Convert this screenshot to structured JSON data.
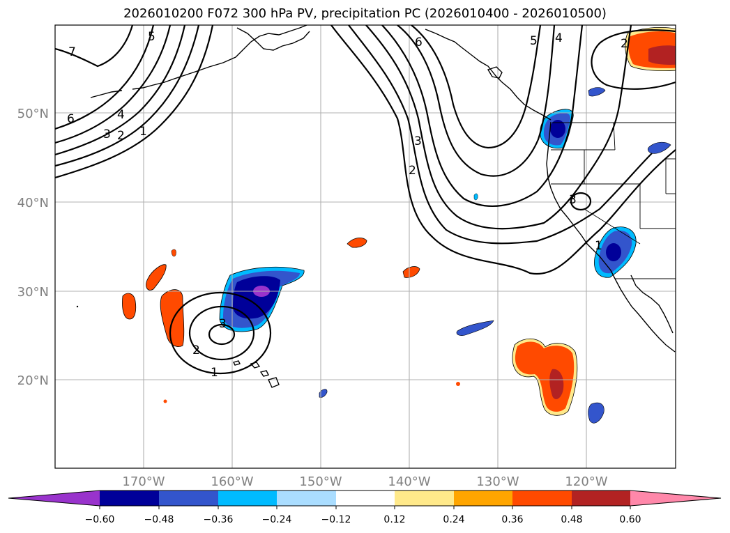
{
  "title": "2026010200 F072 300 hPa PV, precipitation PC (2026010400 - 2026010500)",
  "map": {
    "projection": "Mercator",
    "lon_range": [
      -180,
      -110
    ],
    "lat_range": [
      10,
      60
    ],
    "latitude_labels": [
      "50°N",
      "40°N",
      "30°N",
      "20°N"
    ],
    "longitude_labels": [
      "170°W",
      "160°W",
      "150°W",
      "140°W",
      "130°W",
      "120°W"
    ],
    "pv_contour_labels": [
      "7",
      "5",
      "6",
      "4",
      "3",
      "2",
      "1",
      "6",
      "5",
      "4",
      "3",
      "2",
      "2",
      "3",
      "1",
      "3",
      "2",
      "1"
    ],
    "colorbar": {
      "tick_labels": [
        "−0.60",
        "−0.48",
        "−0.36",
        "−0.24",
        "−0.12",
        "0.12",
        "0.24",
        "0.36",
        "0.48",
        "0.60"
      ],
      "colors": [
        "#9933cc",
        "#000099",
        "#3355cc",
        "#00bbff",
        "#aaddff",
        "#ffffff",
        "#ffe98a",
        "#ffa500",
        "#ff4a00",
        "#b22222",
        "#ff88aa"
      ]
    },
    "precip_palette": {
      "neg_strong": "#000099",
      "neg_mid": "#3355cc",
      "neg_weak": "#00bbff",
      "neg_faint": "#aaddff",
      "neg_extreme": "#9933cc",
      "pos_faint": "#ffe98a",
      "pos_weak": "#ffa500",
      "pos_mid": "#ff4a00",
      "pos_strong": "#b22222"
    }
  }
}
